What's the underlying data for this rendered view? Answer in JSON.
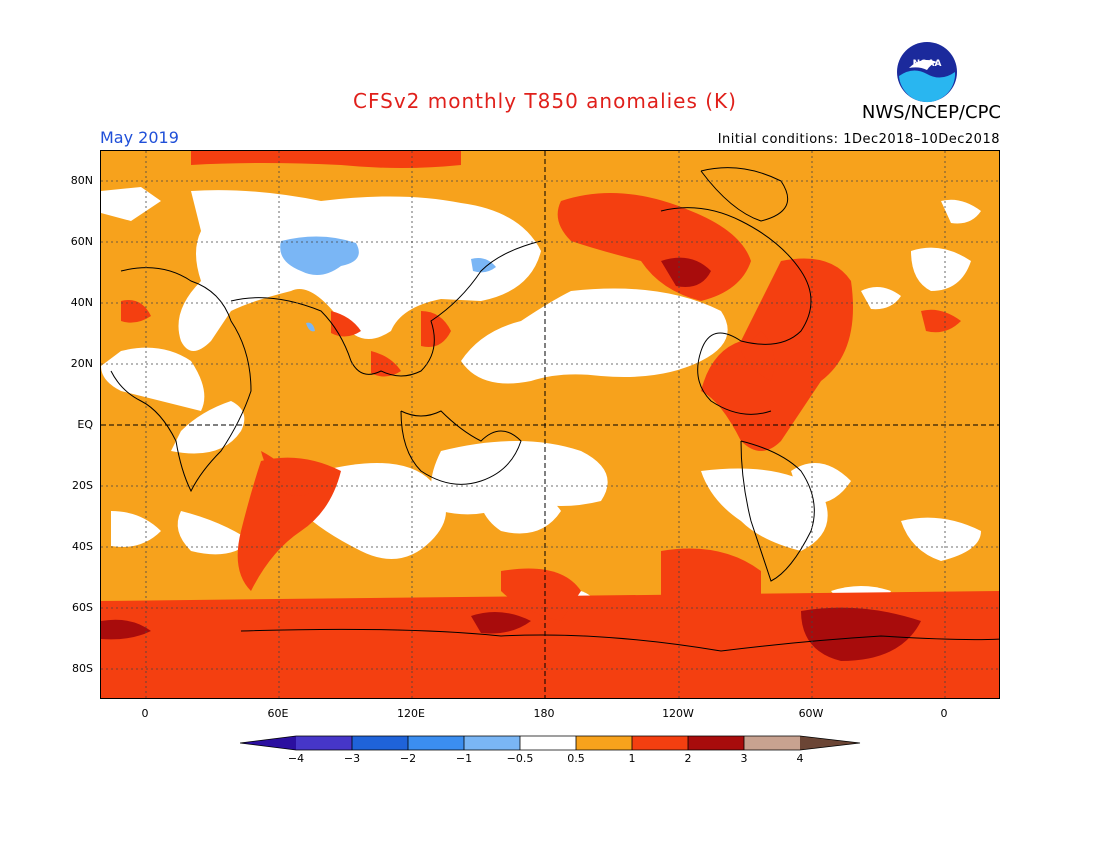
{
  "header": {
    "title": "CFSv2 monthly T850 anomalies (K)",
    "agency": "NWS/NCEP/CPC",
    "logo_text": "NOAA",
    "month": "May 2019",
    "initial_conditions": "Initial conditions: 1Dec2018–10Dec2018"
  },
  "map": {
    "lat_labels": [
      "80N",
      "60N",
      "40N",
      "20N",
      "EQ",
      "20S",
      "40S",
      "60S",
      "80S"
    ],
    "lon_labels": [
      "0",
      "60E",
      "120E",
      "180",
      "120W",
      "60W",
      "0"
    ]
  },
  "colorbar": {
    "labels": [
      "−4",
      "−3",
      "−2",
      "−1",
      "−0.5",
      "0.5",
      "1",
      "2",
      "3",
      "4"
    ],
    "colors": [
      "#2b0fa0",
      "#4636c8",
      "#1f63d9",
      "#3b8ef0",
      "#7ab6f5",
      "#ffffff",
      "#f7a21c",
      "#f43f10",
      "#a80c0c",
      "#c8a290",
      "#6b4535"
    ]
  },
  "colors": {
    "warm1": "#f7a21c",
    "warm2": "#f43f10",
    "warm3": "#a80c0c",
    "neutral": "#ffffff",
    "cool1": "#7ab6f5"
  }
}
